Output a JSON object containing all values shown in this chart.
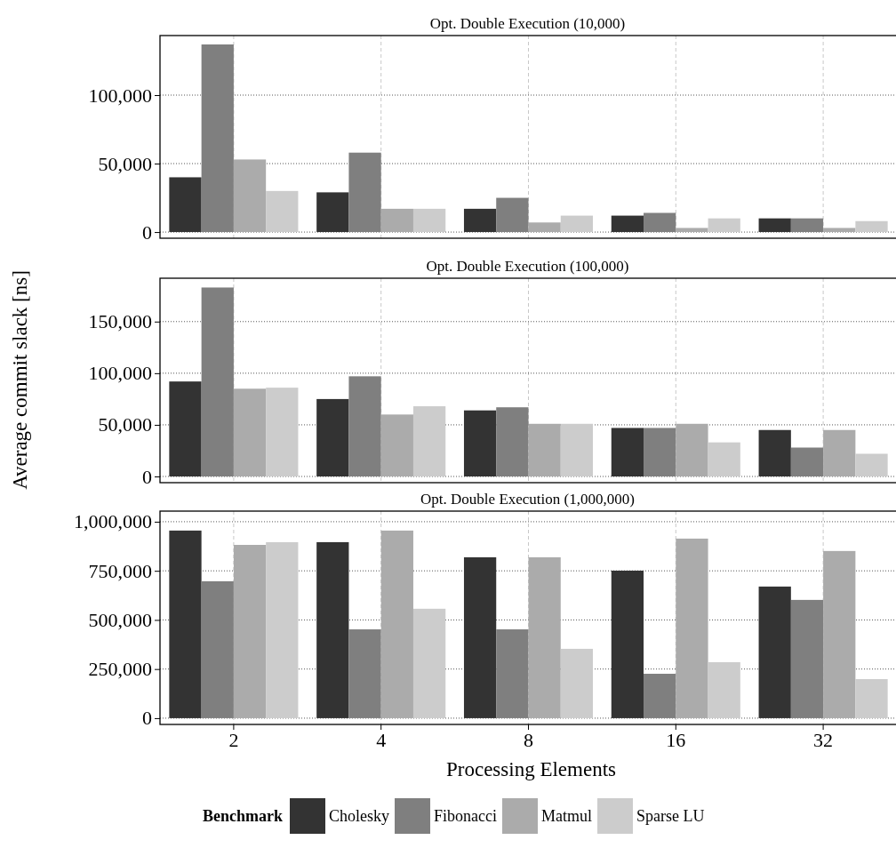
{
  "chart_data": [
    {
      "type": "bar",
      "title": "Opt. Double Execution (10,000)",
      "categories": [
        "2",
        "4",
        "8",
        "16",
        "32"
      ],
      "ylim": [
        -4500,
        143500
      ],
      "yticks": [
        {
          "value": 0,
          "label": "0"
        },
        {
          "value": 50000,
          "label": "50,000"
        },
        {
          "value": 100000,
          "label": "100,000"
        }
      ],
      "grid": true,
      "tick_labels": "y",
      "series": [
        {
          "color": "#333333",
          "values": [
            40000,
            29000,
            17000,
            12000,
            10000
          ]
        },
        {
          "color": "#7f7f7f",
          "values": [
            137000,
            58000,
            25000,
            14000,
            10000
          ]
        },
        {
          "color": "#ababab",
          "values": [
            53000,
            17000,
            7000,
            3000,
            3000
          ]
        },
        {
          "color": "#cccccc",
          "values": [
            30000,
            17000,
            12000,
            10000,
            8000
          ]
        }
      ]
    },
    {
      "type": "bar",
      "title": "Opt. Double Execution (100,000)",
      "ylabel": "Average commit slack [ns]",
      "categories": [
        "2",
        "4",
        "8",
        "16",
        "32"
      ],
      "ylim": [
        -6000,
        192000
      ],
      "yticks": [
        {
          "value": 0,
          "label": "0"
        },
        {
          "value": 50000,
          "label": "50,000"
        },
        {
          "value": 100000,
          "label": "100,000"
        },
        {
          "value": 150000,
          "label": "150,000"
        }
      ],
      "grid": true,
      "tick_labels": "y",
      "series": [
        {
          "color": "#333333",
          "values": [
            92000,
            75000,
            64000,
            47000,
            45000
          ]
        },
        {
          "color": "#7f7f7f",
          "values": [
            183000,
            97000,
            67000,
            47000,
            28000
          ]
        },
        {
          "color": "#ababab",
          "values": [
            85000,
            60000,
            51000,
            51000,
            45000
          ]
        },
        {
          "color": "#cccccc",
          "values": [
            86000,
            68000,
            51000,
            33000,
            22000
          ]
        }
      ]
    },
    {
      "type": "bar",
      "title": "Opt. Double Execution (1,000,000)",
      "xlabel": "Processing Elements",
      "legend_title": "Benchmark",
      "legend": "bottom",
      "categories": [
        "2",
        "4",
        "8",
        "16",
        "32"
      ],
      "ylim": [
        -32000,
        1054000
      ],
      "yticks": [
        {
          "value": 0,
          "label": "0"
        },
        {
          "value": 250000,
          "label": "250,000"
        },
        {
          "value": 500000,
          "label": "500,000"
        },
        {
          "value": 750000,
          "label": "750,000"
        },
        {
          "value": 1000000,
          "label": "1,000,000"
        }
      ],
      "grid": true,
      "series": [
        {
          "name": "Cholesky",
          "color": "#333333",
          "values": [
            955000,
            896000,
            819000,
            751000,
            670000
          ]
        },
        {
          "name": "Fibonacci",
          "color": "#7f7f7f",
          "values": [
            697000,
            452000,
            452000,
            226000,
            602000
          ]
        },
        {
          "name": "Matmul",
          "color": "#ababab",
          "values": [
            882000,
            955000,
            819000,
            914000,
            851000
          ]
        },
        {
          "name": "Sparse LU",
          "color": "#cccccc",
          "values": [
            896000,
            557000,
            353000,
            285000,
            199000
          ]
        }
      ]
    }
  ]
}
